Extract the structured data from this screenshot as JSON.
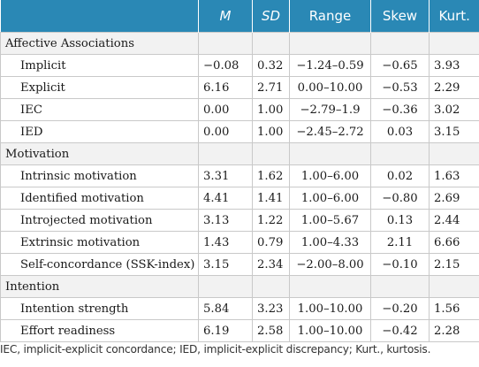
{
  "table": {
    "headers": [
      "",
      "M",
      "SD",
      "Range",
      "Skew",
      "Kurt."
    ],
    "groups": [
      {
        "label": "Affective Associations",
        "rows": [
          {
            "label": "Implicit",
            "m": "−0.08",
            "sd": "0.32",
            "range": "−1.24–0.59",
            "skew": "−0.65",
            "kurt": "3.93"
          },
          {
            "label": "Explicit",
            "m": "6.16",
            "sd": "2.71",
            "range": "0.00–10.00",
            "skew": "−0.53",
            "kurt": "2.29"
          },
          {
            "label": "IEC",
            "m": "0.00",
            "sd": "1.00",
            "range": "−2.79–1.9",
            "skew": "−0.36",
            "kurt": "3.02"
          },
          {
            "label": "IED",
            "m": "0.00",
            "sd": "1.00",
            "range": "−2.45–2.72",
            "skew": "0.03",
            "kurt": "3.15"
          }
        ]
      },
      {
        "label": "Motivation",
        "rows": [
          {
            "label": "Intrinsic motivation",
            "m": "3.31",
            "sd": "1.62",
            "range": "1.00–6.00",
            "skew": "0.02",
            "kurt": "1.63"
          },
          {
            "label": "Identified motivation",
            "m": "4.41",
            "sd": "1.41",
            "range": "1.00–6.00",
            "skew": "−0.80",
            "kurt": "2.69"
          },
          {
            "label": "Introjected motivation",
            "m": "3.13",
            "sd": "1.22",
            "range": "1.00–5.67",
            "skew": "0.13",
            "kurt": "2.44"
          },
          {
            "label": "Extrinsic motivation",
            "m": "1.43",
            "sd": "0.79",
            "range": "1.00–4.33",
            "skew": "2.11",
            "kurt": "6.66"
          },
          {
            "label": "Self-concordance (SSK-index)",
            "m": "3.15",
            "sd": "2.34",
            "range": "−2.00–8.00",
            "skew": "−0.10",
            "kurt": "2.15"
          }
        ]
      },
      {
        "label": "Intention",
        "rows": [
          {
            "label": "Intention strength",
            "m": "5.84",
            "sd": "3.23",
            "range": "1.00–10.00",
            "skew": "−0.20",
            "kurt": "1.56"
          },
          {
            "label": "Effort readiness",
            "m": "6.19",
            "sd": "2.58",
            "range": "1.00–10.00",
            "skew": "−0.42",
            "kurt": "2.28"
          }
        ]
      }
    ]
  },
  "footnote": "IEC, implicit-explicit concordance; IED, implicit-explicit discrepancy; Kurt., kurtosis.",
  "colors": {
    "header_bg": "#2a88b5",
    "header_text": "#ffffff",
    "group_row_bg": "#f2f2f2",
    "border": "#c9c9c9"
  }
}
